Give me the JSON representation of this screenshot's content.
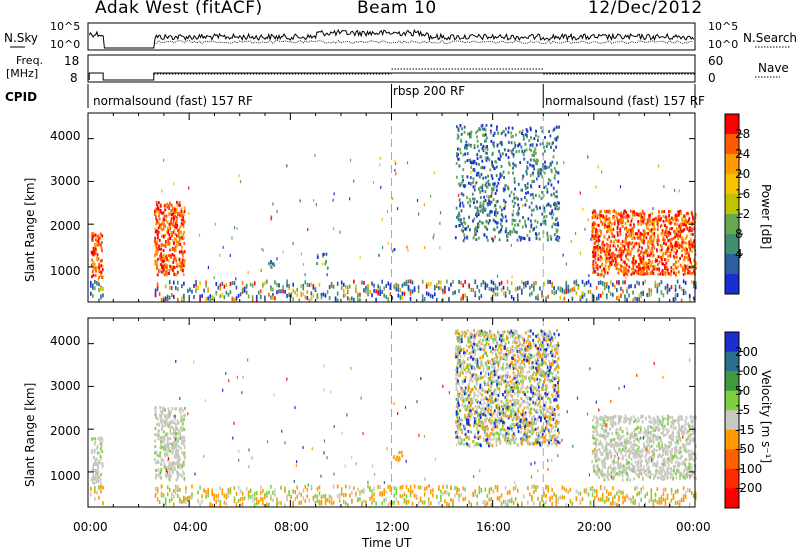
{
  "header": {
    "station": "Adak West (fitACF)",
    "beam": "Beam 10",
    "date": "12/Dec/2012"
  },
  "top_panels": {
    "nsky_label": "N.Sky",
    "nsky_ticks": [
      "10^5",
      "10^0"
    ],
    "nsearch_label": "N.Search",
    "nsearch_ticks": [
      "10^5",
      "10^0"
    ],
    "freq_label_line1": "Freq.",
    "freq_label_line2": "[MHz]",
    "freq_ticks": [
      "18",
      "8"
    ],
    "nave_label": "Nave",
    "nave_ticks": [
      "60",
      "0"
    ],
    "cpid_label": "CPID",
    "cpid_segments": [
      {
        "label": "normalsound (fast) 157 RF",
        "start_h": 0,
        "end_h": 12
      },
      {
        "label": "rbsp 200 RF",
        "start_h": 12,
        "end_h": 18
      },
      {
        "label": "normalsound (fast) 157 RF",
        "start_h": 18,
        "end_h": 24
      }
    ]
  },
  "x_axis": {
    "label": "Time UT",
    "ticks": [
      "00:00",
      "04:00",
      "08:00",
      "12:00",
      "16:00",
      "20:00",
      "00:00"
    ]
  },
  "chart_data": [
    {
      "type": "heatmap",
      "name": "power",
      "ylabel": "Slant Range [km]",
      "yticks": [
        "4000",
        "3000",
        "2000",
        "1000"
      ],
      "xlim_hours": [
        0,
        24
      ],
      "ylim_km": [
        180,
        4600
      ],
      "colorbar_label": "Power [dB]",
      "colorbar_ticks": [
        "28",
        "24",
        "20",
        "16",
        "12",
        "8",
        "4"
      ],
      "colorbar_colors": [
        "#ff0000",
        "#ff5a00",
        "#ff9a00",
        "#f5c400",
        "#c0c400",
        "#6aa84f",
        "#3f8f6f",
        "#2a5fa0",
        "#1a2fd0"
      ],
      "regions": [
        {
          "t0": 0.1,
          "t1": 0.55,
          "r0": 700,
          "r1": 1800,
          "level": "high"
        },
        {
          "t0": 2.6,
          "t1": 3.8,
          "r0": 800,
          "r1": 2500,
          "level": "high"
        },
        {
          "t0": 7.0,
          "t1": 7.5,
          "r0": 950,
          "r1": 1200,
          "level": "low"
        },
        {
          "t0": 9.0,
          "t1": 9.5,
          "r0": 950,
          "r1": 1300,
          "level": "low"
        },
        {
          "t0": 12.0,
          "t1": 12.4,
          "r0": 1250,
          "r1": 1450,
          "level": "low"
        },
        {
          "t0": 14.5,
          "t1": 18.6,
          "r0": 1600,
          "r1": 4300,
          "level": "low"
        },
        {
          "t0": 19.9,
          "t1": 24.0,
          "r0": 800,
          "r1": 2300,
          "level": "high"
        }
      ]
    },
    {
      "type": "heatmap",
      "name": "velocity",
      "ylabel": "Slant Range [km]",
      "yticks": [
        "4000",
        "3000",
        "2000",
        "1000"
      ],
      "xlim_hours": [
        0,
        24
      ],
      "ylim_km": [
        180,
        4600
      ],
      "colorbar_label": "Velocity [m s⁻¹]",
      "colorbar_ticks": [
        "200",
        "100",
        "50",
        "15",
        "-15",
        "-50",
        "-100",
        "-200"
      ],
      "colorbar_colors": [
        "#1a2fd0",
        "#2a6f8f",
        "#3f9a3f",
        "#7fd040",
        "#c8c8c0",
        "#ff9a00",
        "#ff6000",
        "#ff2a00",
        "#ff0000"
      ],
      "regions": [
        {
          "t0": 0.1,
          "t1": 0.55,
          "r0": 700,
          "r1": 1800,
          "level": "gray"
        },
        {
          "t0": 2.6,
          "t1": 3.8,
          "r0": 800,
          "r1": 2500,
          "level": "gray"
        },
        {
          "t0": 12.0,
          "t1": 12.4,
          "r0": 1250,
          "r1": 1450,
          "level": "orange"
        },
        {
          "t0": 14.5,
          "t1": 18.6,
          "r0": 1600,
          "r1": 4300,
          "level": "mixed"
        },
        {
          "t0": 19.9,
          "t1": 24.0,
          "r0": 800,
          "r1": 2300,
          "level": "gray"
        }
      ]
    }
  ]
}
